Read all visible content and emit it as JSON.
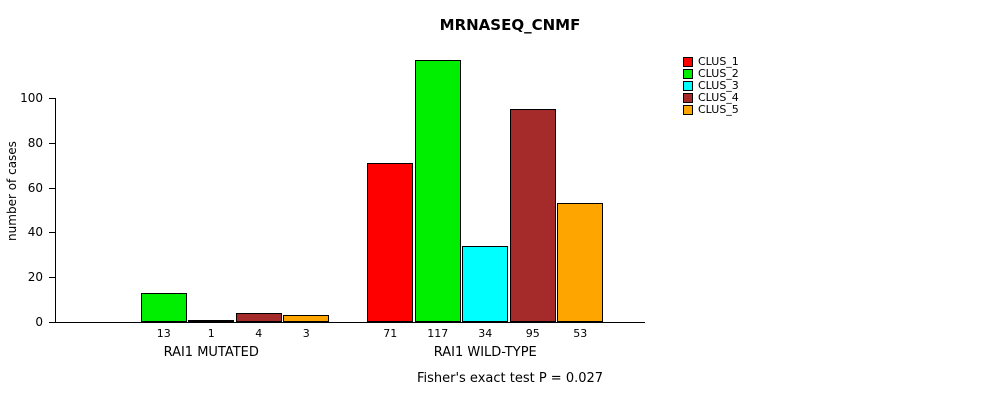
{
  "chart_data": {
    "type": "bar",
    "title": "MRNASEQ_CNMF",
    "ylabel": "number of cases",
    "ylim": [
      0,
      100
    ],
    "yticks": [
      0,
      20,
      40,
      60,
      80,
      100
    ],
    "grid": false,
    "legend_position": "top-right",
    "series": [
      {
        "name": "CLUS_1",
        "color": "#FF0000"
      },
      {
        "name": "CLUS_2",
        "color": "#00EE00"
      },
      {
        "name": "CLUS_3",
        "color": "#00FFFF"
      },
      {
        "name": "CLUS_4",
        "color": "#A52A2A"
      },
      {
        "name": "CLUS_5",
        "color": "#FFA500"
      }
    ],
    "groups": [
      {
        "label": "RAI1 MUTATED",
        "values": [
          0,
          13,
          1,
          4,
          3
        ],
        "value_labels": [
          "",
          "13",
          "1",
          "4",
          "3"
        ]
      },
      {
        "label": "RAI1 WILD-TYPE",
        "values": [
          71,
          117,
          34,
          95,
          53
        ],
        "value_labels": [
          "71",
          "117",
          "34",
          "95",
          "53"
        ]
      }
    ],
    "annotation": "Fisher's exact test P = 0.027"
  }
}
